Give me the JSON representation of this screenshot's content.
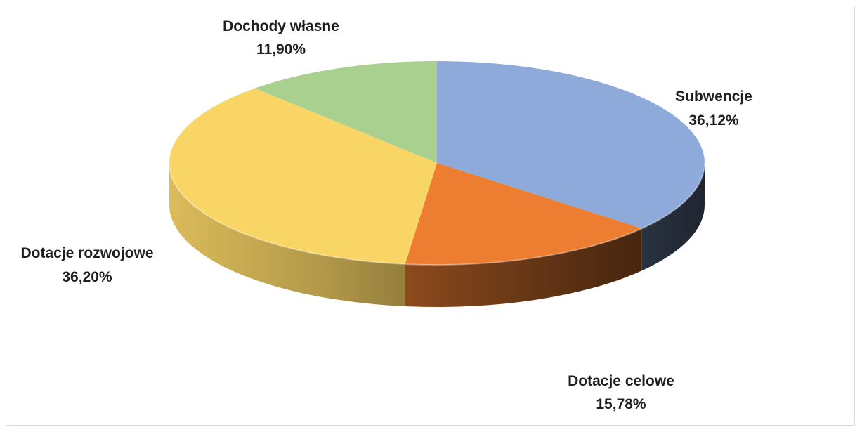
{
  "chart_data": {
    "type": "pie",
    "title": "",
    "slices": [
      {
        "name": "Subwencje",
        "value": 36.12,
        "label": "36,12%",
        "color": "#8eaadb"
      },
      {
        "name": "Dotacje celowe",
        "value": 15.78,
        "label": "15,78%",
        "color": "#ed7d31"
      },
      {
        "name": "Dotacje rozwojowe",
        "value": 36.2,
        "label": "36,20%",
        "color": "#f9d566"
      },
      {
        "name": "Dochody własne",
        "value": 11.9,
        "label": "11,90%",
        "color": "#a9d08e"
      }
    ],
    "legend": "none",
    "style": "3d"
  }
}
